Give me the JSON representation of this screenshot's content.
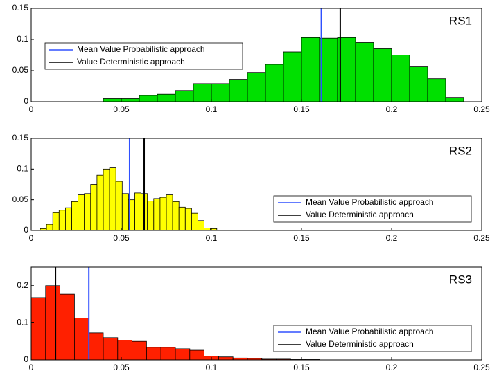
{
  "chart_data": [
    {
      "type": "histogram",
      "annotation": "RS1",
      "color": "#00e000",
      "legend": "upper left",
      "bins": [
        0.04,
        0.05,
        0.06,
        0.07,
        0.08,
        0.09,
        0.1,
        0.11,
        0.12,
        0.13,
        0.14,
        0.15,
        0.16,
        0.17,
        0.18,
        0.19,
        0.2,
        0.21,
        0.22,
        0.23,
        0.24
      ],
      "values": [
        0.005,
        0.005,
        0.01,
        0.012,
        0.018,
        0.029,
        0.029,
        0.036,
        0.047,
        0.06,
        0.08,
        0.103,
        0.102,
        0.103,
        0.095,
        0.085,
        0.075,
        0.056,
        0.037,
        0.007
      ],
      "series": [
        {
          "name": "Mean Value Probabilistic approach",
          "color": "#3050ff",
          "x": 0.161
        },
        {
          "name": "Value Deterministic approach",
          "color": "#000000",
          "x": 0.1715
        }
      ],
      "xlim": [
        0,
        0.25
      ],
      "xticks": [
        0,
        0.05,
        0.1,
        0.15,
        0.2,
        0.25
      ],
      "ylim": [
        0,
        0.15
      ],
      "yticks": [
        0,
        0.05,
        0.1,
        0.15
      ]
    },
    {
      "type": "histogram",
      "annotation": "RS2",
      "color": "#ffff00",
      "legend": "lower right",
      "bins": [
        0.005,
        0.0085,
        0.012,
        0.0155,
        0.019,
        0.0225,
        0.026,
        0.0295,
        0.033,
        0.0365,
        0.04,
        0.0435,
        0.047,
        0.0505,
        0.054,
        0.0575,
        0.061,
        0.0645,
        0.068,
        0.0715,
        0.075,
        0.0785,
        0.082,
        0.0855,
        0.089,
        0.0925,
        0.096,
        0.0995,
        0.103
      ],
      "values": [
        0.003,
        0.01,
        0.029,
        0.033,
        0.037,
        0.047,
        0.058,
        0.06,
        0.075,
        0.09,
        0.1,
        0.102,
        0.08,
        0.06,
        0.05,
        0.061,
        0.06,
        0.048,
        0.052,
        0.054,
        0.058,
        0.047,
        0.038,
        0.036,
        0.028,
        0.016,
        0.004,
        0.003
      ],
      "series": [
        {
          "name": "Mean Value Probabilistic approach",
          "color": "#3050ff",
          "x": 0.0546
        },
        {
          "name": "Value Deterministic approach",
          "color": "#000000",
          "x": 0.0627
        }
      ],
      "xlim": [
        0,
        0.25
      ],
      "xticks": [
        0,
        0.05,
        0.1,
        0.15,
        0.2,
        0.25
      ],
      "ylim": [
        0,
        0.15
      ],
      "yticks": [
        0,
        0.05,
        0.1,
        0.15
      ]
    },
    {
      "type": "histogram",
      "annotation": "RS3",
      "color": "#ff2000",
      "legend": "lower right",
      "bins": [
        0,
        0.008,
        0.016,
        0.024,
        0.032,
        0.04,
        0.048,
        0.056,
        0.064,
        0.072,
        0.08,
        0.088,
        0.096,
        0.104,
        0.112,
        0.12,
        0.128,
        0.136,
        0.144,
        0.152,
        0.16
      ],
      "values": [
        0.168,
        0.2,
        0.177,
        0.113,
        0.073,
        0.06,
        0.053,
        0.05,
        0.034,
        0.034,
        0.03,
        0.026,
        0.01,
        0.008,
        0.005,
        0.004,
        0.002,
        0.002,
        0.001,
        0.001
      ],
      "series": [
        {
          "name": "Mean Value Probabilistic approach",
          "color": "#3050ff",
          "x": 0.032
        },
        {
          "name": "Value Deterministic approach",
          "color": "#000000",
          "x": 0.0135
        }
      ],
      "xlim": [
        0,
        0.25
      ],
      "xticks": [
        0,
        0.05,
        0.1,
        0.15,
        0.2,
        0.25
      ],
      "ylim": [
        0,
        0.25
      ],
      "yticks": [
        0,
        0.1,
        0.2
      ]
    }
  ]
}
